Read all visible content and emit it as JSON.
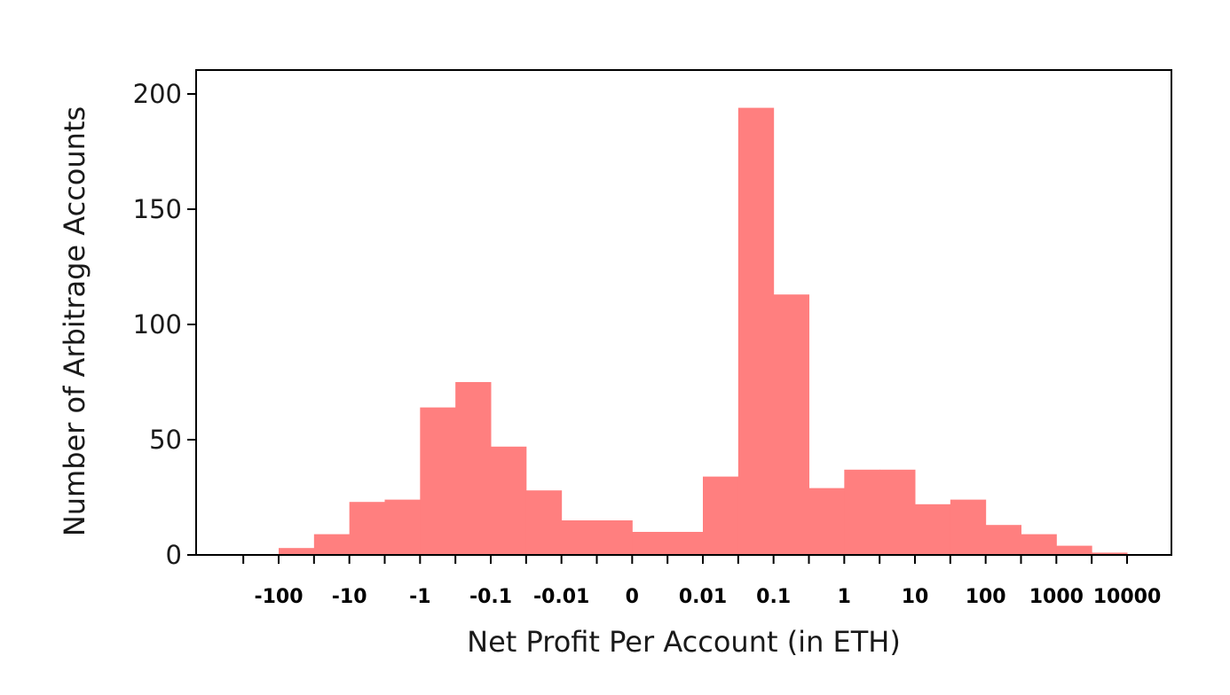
{
  "chart_data": {
    "type": "bar",
    "title": "",
    "xlabel": "Net Profit Per Account (in ETH)",
    "ylabel": "Number of Arbitrage Accounts",
    "ylim": [
      0,
      200
    ],
    "yticks": [
      0,
      50,
      100,
      150,
      200
    ],
    "xtick_labels": [
      "-100",
      "-10",
      "-1",
      "-0.1",
      "-0.01",
      "0",
      "0.01",
      "0.1",
      "1",
      "10",
      "100",
      "1000",
      "10000"
    ],
    "bar_color": "#ff7f7f",
    "grid": false,
    "legend": "none",
    "bins": [
      {
        "from": "-100",
        "to": "-10",
        "parts": [
          3,
          9
        ]
      },
      {
        "from": "-10",
        "to": "-1",
        "parts": [
          23,
          24
        ]
      },
      {
        "from": "-1",
        "to": "-0.1",
        "parts": [
          64,
          75
        ]
      },
      {
        "from": "-0.1",
        "to": "-0.01",
        "parts": [
          47,
          28
        ]
      },
      {
        "from": "-0.01",
        "to": "0",
        "parts": [
          15
        ]
      },
      {
        "from": "0",
        "to": "0.01",
        "parts": [
          10
        ]
      },
      {
        "from": "0.01",
        "to": "0.1",
        "parts": [
          34,
          194
        ]
      },
      {
        "from": "0.1",
        "to": "1",
        "parts": [
          113,
          29
        ]
      },
      {
        "from": "1",
        "to": "10",
        "parts": [
          37,
          37
        ]
      },
      {
        "from": "10",
        "to": "100",
        "parts": [
          22,
          24
        ]
      },
      {
        "from": "100",
        "to": "1000",
        "parts": [
          13,
          9
        ]
      },
      {
        "from": "1000",
        "to": "10000",
        "parts": [
          4,
          1
        ]
      }
    ]
  }
}
